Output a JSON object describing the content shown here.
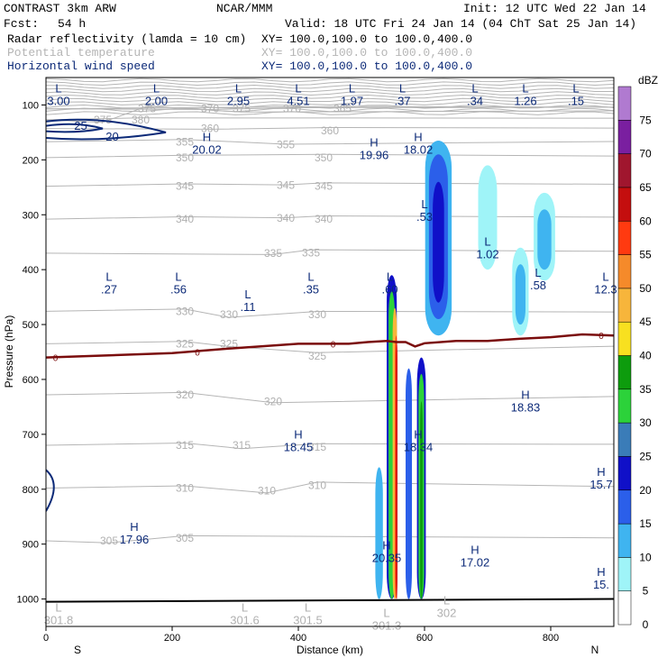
{
  "header": {
    "model": "CONTRAST  3km ARW",
    "center": "NCAR/MMM",
    "init": "Init: 12 UTC Wed 22 Jan 14",
    "fcst_label": "Fcst:",
    "fcst_value": "54 h",
    "valid": "Valid: 18 UTC Fri 24 Jan 14 (04 ChT Sat 25 Jan 14)",
    "fields": [
      {
        "name": "Radar reflectivity (lamda = 10 cm)",
        "xy": "XY= 100.0,100.0 to 100.0,400.0"
      },
      {
        "name": "Potential temperature",
        "xy": "XY= 100.0,100.0 to 100.0,400.0"
      },
      {
        "name": "Horizontal wind speed",
        "xy": "XY= 100.0,100.0 to 100.0,400.0"
      }
    ]
  },
  "chart_data": {
    "type": "cross-section",
    "xlabel": "Distance (km)",
    "ylabel": "Pressure (hPa)",
    "xlim": [
      0,
      900
    ],
    "ylim": [
      1050,
      50
    ],
    "x_ticks": [
      "0",
      "200",
      "400",
      "600",
      "800"
    ],
    "y_ticks": [
      "100",
      "200",
      "300",
      "400",
      "500",
      "600",
      "700",
      "800",
      "900",
      "1000"
    ],
    "left_end": "S",
    "right_end": "N",
    "colorbar": {
      "unit": "dBZ",
      "levels": [
        "0",
        "5",
        "10",
        "15",
        "20",
        "25",
        "30",
        "35",
        "40",
        "45",
        "50",
        "55",
        "60",
        "65",
        "70",
        "75"
      ],
      "colors": [
        "#ffffff",
        "#9ff4f8",
        "#3fb4f0",
        "#2b5fea",
        "#1010c8",
        "#3a7cb8",
        "#2cd23a",
        "#0d9c0d",
        "#f8e020",
        "#f7b53b",
        "#f58a2a",
        "#ff3a10",
        "#c40e0e",
        "#a0162e",
        "#7a1fa0",
        "#b07ad0"
      ]
    },
    "theta_labels": [
      {
        "x": 90,
        "p": 127,
        "text": "375"
      },
      {
        "x": 150,
        "p": 127,
        "text": "380"
      },
      {
        "x": 160,
        "p": 107,
        "text": "375"
      },
      {
        "x": 260,
        "p": 107,
        "text": "370"
      },
      {
        "x": 310,
        "p": 107,
        "text": "375"
      },
      {
        "x": 390,
        "p": 107,
        "text": "370"
      },
      {
        "x": 470,
        "p": 107,
        "text": "365"
      },
      {
        "x": 260,
        "p": 143,
        "text": "360"
      },
      {
        "x": 450,
        "p": 147,
        "text": "360"
      },
      {
        "x": 220,
        "p": 167,
        "text": "355"
      },
      {
        "x": 380,
        "p": 172,
        "text": "355"
      },
      {
        "x": 220,
        "p": 196,
        "text": "350"
      },
      {
        "x": 440,
        "p": 196,
        "text": "350"
      },
      {
        "x": 220,
        "p": 248,
        "text": "345"
      },
      {
        "x": 380,
        "p": 246,
        "text": "345"
      },
      {
        "x": 440,
        "p": 248,
        "text": "345"
      },
      {
        "x": 220,
        "p": 308,
        "text": "340"
      },
      {
        "x": 380,
        "p": 306,
        "text": "340"
      },
      {
        "x": 440,
        "p": 308,
        "text": "340"
      },
      {
        "x": 360,
        "p": 370,
        "text": "335"
      },
      {
        "x": 420,
        "p": 369,
        "text": "335"
      },
      {
        "x": 220,
        "p": 476,
        "text": "330"
      },
      {
        "x": 290,
        "p": 482,
        "text": "330"
      },
      {
        "x": 430,
        "p": 482,
        "text": "330"
      },
      {
        "x": 220,
        "p": 535,
        "text": "325"
      },
      {
        "x": 290,
        "p": 535,
        "text": "325"
      },
      {
        "x": 430,
        "p": 557,
        "text": "325"
      },
      {
        "x": 220,
        "p": 628,
        "text": "320"
      },
      {
        "x": 360,
        "p": 640,
        "text": "320"
      },
      {
        "x": 220,
        "p": 720,
        "text": "315"
      },
      {
        "x": 310,
        "p": 720,
        "text": "315"
      },
      {
        "x": 430,
        "p": 723,
        "text": "315"
      },
      {
        "x": 220,
        "p": 798,
        "text": "310"
      },
      {
        "x": 350,
        "p": 803,
        "text": "310"
      },
      {
        "x": 430,
        "p": 793,
        "text": "310"
      },
      {
        "x": 100,
        "p": 894,
        "text": "305"
      },
      {
        "x": 220,
        "p": 889,
        "text": "305"
      }
    ],
    "theta_extremes": [
      {
        "kind": "L",
        "x": 20,
        "p": 77,
        "value": "3.00"
      },
      {
        "kind": "L",
        "x": 175,
        "p": 77,
        "value": "2.00"
      },
      {
        "kind": "L",
        "x": 305,
        "p": 77,
        "value": "2.95"
      },
      {
        "kind": "L",
        "x": 400,
        "p": 77,
        "value": "4.51"
      },
      {
        "kind": "L",
        "x": 485,
        "p": 77,
        "value": "1.97"
      },
      {
        "kind": "L",
        "x": 565,
        "p": 77,
        "value": ".37"
      },
      {
        "kind": "L",
        "x": 680,
        "p": 77,
        "value": ".34"
      },
      {
        "kind": "L",
        "x": 760,
        "p": 77,
        "value": "1.26"
      },
      {
        "kind": "L",
        "x": 840,
        "p": 77,
        "value": ".15"
      },
      {
        "kind": "H",
        "x": 255,
        "p": 166,
        "value": "20.02"
      },
      {
        "kind": "H",
        "x": 520,
        "p": 176,
        "value": "19.96"
      },
      {
        "kind": "H",
        "x": 590,
        "p": 166,
        "value": "18.02"
      },
      {
        "kind": "L",
        "x": 600,
        "p": 288,
        "value": ".53"
      },
      {
        "kind": "L",
        "x": 700,
        "p": 356,
        "value": "1.02"
      },
      {
        "kind": "L",
        "x": 780,
        "p": 413,
        "value": ".58"
      },
      {
        "kind": "L",
        "x": 895,
        "p": 420,
        "value": "12.3"
      },
      {
        "kind": "L",
        "x": 100,
        "p": 420,
        "value": ".27"
      },
      {
        "kind": "L",
        "x": 210,
        "p": 420,
        "value": ".56"
      },
      {
        "kind": "L",
        "x": 320,
        "p": 452,
        "value": ".11"
      },
      {
        "kind": "L",
        "x": 420,
        "p": 420,
        "value": ".35"
      },
      {
        "kind": "L",
        "x": 545,
        "p": 420,
        "value": ".60"
      },
      {
        "kind": "H",
        "x": 760,
        "p": 635,
        "value": "18.83"
      },
      {
        "kind": "H",
        "x": 400,
        "p": 708,
        "value": "18.45"
      },
      {
        "kind": "H",
        "x": 590,
        "p": 708,
        "value": "18.34"
      },
      {
        "kind": "H",
        "x": 880,
        "p": 776,
        "value": "15.7"
      },
      {
        "kind": "H",
        "x": 140,
        "p": 876,
        "value": "17.96"
      },
      {
        "kind": "H",
        "x": 540,
        "p": 910,
        "value": "20.35"
      },
      {
        "kind": "H",
        "x": 680,
        "p": 918,
        "value": "17.02"
      },
      {
        "kind": "H",
        "x": 880,
        "p": 958,
        "value": "15."
      },
      {
        "kind": "L",
        "x": 20,
        "p": 1023,
        "value": "301.8"
      },
      {
        "kind": "L",
        "x": 315,
        "p": 1023,
        "value": "301.6"
      },
      {
        "kind": "L",
        "x": 415,
        "p": 1023,
        "value": "301.5"
      },
      {
        "kind": "L",
        "x": 635,
        "p": 1010,
        "value": "302"
      },
      {
        "kind": "L",
        "x": 540,
        "p": 1033,
        "value": "301.3"
      }
    ],
    "wind_labels": [
      {
        "x": 55,
        "p": 137,
        "text": "25"
      },
      {
        "x": 105,
        "p": 157,
        "text": "20"
      }
    ],
    "freezing_level_label": "0",
    "freezing_level": [
      [
        0,
        560
      ],
      [
        100,
        556
      ],
      [
        200,
        552
      ],
      [
        300,
        543
      ],
      [
        400,
        535
      ],
      [
        480,
        535
      ],
      [
        510,
        532
      ],
      [
        540,
        530
      ],
      [
        555,
        532
      ],
      [
        570,
        532
      ],
      [
        585,
        540
      ],
      [
        600,
        534
      ],
      [
        650,
        530
      ],
      [
        700,
        530
      ],
      [
        750,
        526
      ],
      [
        800,
        523
      ],
      [
        850,
        518
      ],
      [
        900,
        520
      ]
    ],
    "reflectivity_cells": [
      {
        "x": 548,
        "w": 16,
        "p_top": 410,
        "p_bot": 1000,
        "dbz": 20
      },
      {
        "x": 548,
        "w": 10,
        "p_top": 440,
        "p_bot": 1000,
        "dbz": 30
      },
      {
        "x": 553,
        "w": 7,
        "p_top": 470,
        "p_bot": 1000,
        "dbz": 45
      },
      {
        "x": 555,
        "w": 4,
        "p_top": 520,
        "p_bot": 1000,
        "dbz": 55
      },
      {
        "x": 556,
        "w": 2,
        "p_top": 530,
        "p_bot": 1000,
        "dbz": 60
      },
      {
        "x": 595,
        "w": 14,
        "p_top": 560,
        "p_bot": 1000,
        "dbz": 20
      },
      {
        "x": 595,
        "w": 9,
        "p_top": 590,
        "p_bot": 1000,
        "dbz": 30
      },
      {
        "x": 595,
        "w": 4,
        "p_top": 640,
        "p_bot": 1000,
        "dbz": 35
      },
      {
        "x": 575,
        "w": 10,
        "p_top": 580,
        "p_bot": 1000,
        "dbz": 15
      },
      {
        "x": 528,
        "w": 12,
        "p_top": 760,
        "p_bot": 1000,
        "dbz": 10
      },
      {
        "x": 622,
        "w": 42,
        "p_top": 165,
        "p_bot": 520,
        "dbz": 10
      },
      {
        "x": 622,
        "w": 30,
        "p_top": 190,
        "p_bot": 490,
        "dbz": 15
      },
      {
        "x": 622,
        "w": 18,
        "p_top": 240,
        "p_bot": 460,
        "dbz": 20
      },
      {
        "x": 700,
        "w": 30,
        "p_top": 210,
        "p_bot": 400,
        "dbz": 5
      },
      {
        "x": 790,
        "w": 34,
        "p_top": 260,
        "p_bot": 420,
        "dbz": 5
      },
      {
        "x": 790,
        "w": 22,
        "p_top": 290,
        "p_bot": 400,
        "dbz": 10
      },
      {
        "x": 752,
        "w": 26,
        "p_top": 360,
        "p_bot": 520,
        "dbz": 5
      },
      {
        "x": 752,
        "w": 16,
        "p_top": 390,
        "p_bot": 500,
        "dbz": 10
      }
    ]
  }
}
